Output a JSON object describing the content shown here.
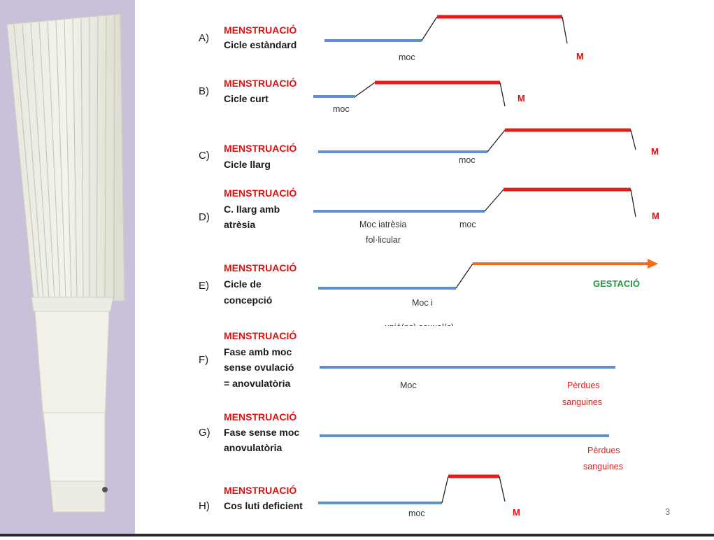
{
  "rows": [
    {
      "letter": "A)",
      "title": "MENSTRUACIÓ",
      "desc": [
        "Cicle estàndard"
      ],
      "labels": [
        {
          "text": "moc",
          "style": "lab"
        },
        {
          "text": "M",
          "style": "m-lab"
        }
      ]
    },
    {
      "letter": "B)",
      "title": "MENSTRUACIÓ",
      "desc": [
        "Cicle curt"
      ],
      "labels": [
        {
          "text": "moc",
          "style": "lab"
        },
        {
          "text": "M",
          "style": "m-lab"
        }
      ]
    },
    {
      "letter": "C)",
      "title": "MENSTRUACIÓ",
      "desc": [
        "Cicle llarg"
      ],
      "labels": [
        {
          "text": "moc",
          "style": "lab"
        },
        {
          "text": "M",
          "style": "m-lab"
        }
      ]
    },
    {
      "letter": "D)",
      "title": "MENSTRUACIÓ",
      "desc": [
        "C. llarg amb",
        "atrèsia"
      ],
      "labels": [
        {
          "text": "Moc iatrèsia",
          "style": "lab"
        },
        {
          "text": "fol·licular",
          "style": "lab"
        },
        {
          "text": "moc",
          "style": "lab"
        },
        {
          "text": "M",
          "style": "m-lab"
        }
      ]
    },
    {
      "letter": "E)",
      "title": "MENSTRUACIÓ",
      "desc": [
        "Cicle de",
        "concepció"
      ],
      "labels": [
        {
          "text": "Moc  i",
          "style": "lab"
        },
        {
          "text": "unió(ns) sexual(s)",
          "style": "lab"
        },
        {
          "text": "GESTACIÓ",
          "style": "gest"
        }
      ]
    },
    {
      "letter": "F)",
      "title": "MENSTRUACIÓ",
      "desc": [
        "Fase amb moc",
        "sense ovulació",
        " = anovulatòria"
      ],
      "labels": [
        {
          "text": "Moc",
          "style": "lab"
        },
        {
          "text": "Pèrdues",
          "style": "lab-red"
        },
        {
          "text": "sanguines",
          "style": "lab-red"
        }
      ]
    },
    {
      "letter": "G)",
      "title": "MENSTRUACIÓ",
      "desc": [
        "Fase sense moc",
        "anovulatòria"
      ],
      "labels": [
        {
          "text": "Pèrdues",
          "style": "lab-red"
        },
        {
          "text": "sanguines",
          "style": "lab-red"
        }
      ]
    },
    {
      "letter": "H)",
      "title": "MENSTRUACIÓ",
      "desc": [
        "Cos luti deficient"
      ],
      "labels": [
        {
          "text": "moc",
          "style": "lab"
        },
        {
          "text": "M",
          "style": "m-lab"
        }
      ]
    }
  ],
  "page_number": "3",
  "colors": {
    "blue": "#5b8fd0",
    "red": "#e61b1b",
    "orange": "#f26a1b",
    "green": "#1f9a3c"
  }
}
